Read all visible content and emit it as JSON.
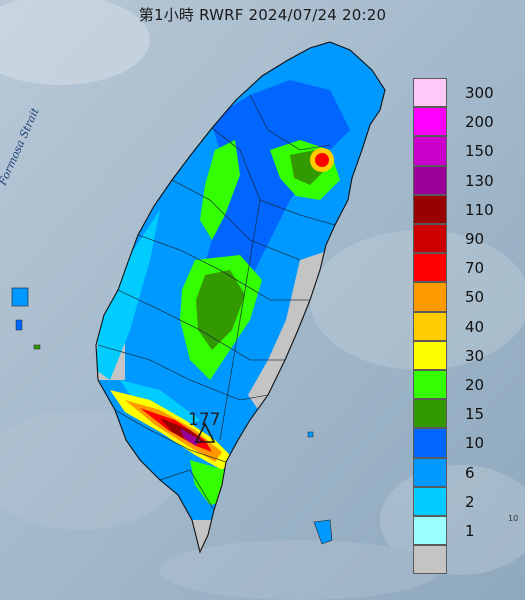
{
  "title": "第1小時  RWRF 2024/07/24 20:20",
  "strait_label": "Formosa Strait",
  "max_marker": {
    "value": "177",
    "symbol": "triangle-marker"
  },
  "corner_text": "10",
  "legend": {
    "levels": [
      {
        "label": "300",
        "color": "#ffc8fa"
      },
      {
        "label": "200",
        "color": "#ff00ff"
      },
      {
        "label": "150",
        "color": "#cc00cc"
      },
      {
        "label": "130",
        "color": "#990099"
      },
      {
        "label": "110",
        "color": "#990000"
      },
      {
        "label": "90",
        "color": "#cc0000"
      },
      {
        "label": "70",
        "color": "#ff0000"
      },
      {
        "label": "50",
        "color": "#ff9900"
      },
      {
        "label": "40",
        "color": "#ffcc00"
      },
      {
        "label": "30",
        "color": "#ffff00"
      },
      {
        "label": "20",
        "color": "#33ff00"
      },
      {
        "label": "15",
        "color": "#339900"
      },
      {
        "label": "10",
        "color": "#0066ff"
      },
      {
        "label": "6",
        "color": "#0099ff"
      },
      {
        "label": "2",
        "color": "#00ccff"
      },
      {
        "label": "1",
        "color": "#99ffff"
      },
      {
        "label": "",
        "color": "#c4c4c4"
      }
    ]
  },
  "colors": {
    "sea": "#9fb6c8",
    "land_low": "#0099ff",
    "land_dry": "#c4c4c4"
  }
}
